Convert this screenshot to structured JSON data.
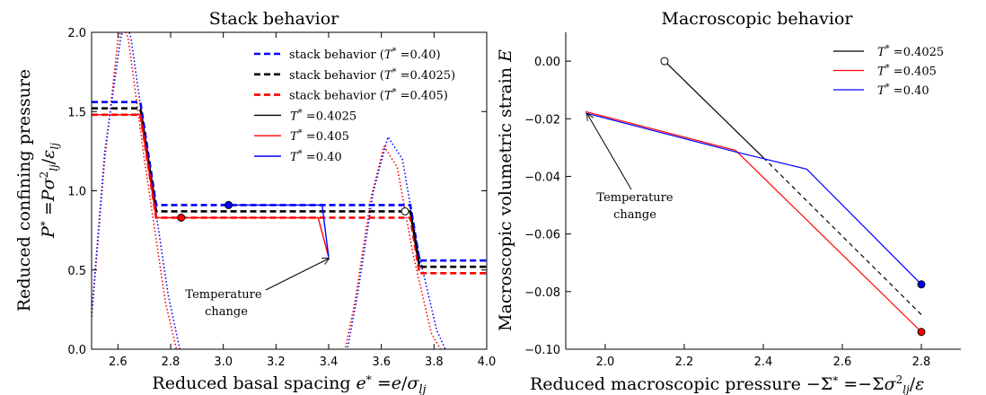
{
  "chart_data": [
    {
      "type": "line",
      "title": "Stack behavior",
      "xlabel": "Reduced basal spacing e* = e/σ_lj",
      "ylabel_line1": "Reduced confining pressure",
      "ylabel_line2": "P* = Pσ²_lj/ε_lj",
      "xlim": [
        2.5,
        4.0
      ],
      "ylim": [
        0.0,
        2.0
      ],
      "xticks": [
        "2.6",
        "2.8",
        "3.0",
        "3.2",
        "3.4",
        "3.6",
        "3.8",
        "4.0"
      ],
      "yticks": [
        "0.0",
        "0.5",
        "1.0",
        "1.5",
        "2.0"
      ],
      "legend": "top-right",
      "annotation": {
        "line1": "Temperature",
        "line2": "change"
      },
      "series": [
        {
          "name": "stack behavior (T* = 0.40)",
          "style": "dashed",
          "color": "#0000ff",
          "x": [
            2.5,
            2.685,
            2.745,
            3.375,
            3.71,
            3.745,
            4.0
          ],
          "y": [
            1.56,
            1.56,
            0.91,
            0.91,
            0.91,
            0.56,
            0.56
          ]
        },
        {
          "name": "stack behavior (T* = 0.4025)",
          "style": "dashed",
          "color": "#000000",
          "x": [
            2.5,
            2.685,
            2.745,
            3.375,
            3.71,
            3.745,
            4.0
          ],
          "y": [
            1.52,
            1.52,
            0.87,
            0.87,
            0.87,
            0.52,
            0.52
          ]
        },
        {
          "name": "stack behavior (T* = 0.405)",
          "style": "dashed",
          "color": "#ff0000",
          "x": [
            2.5,
            2.685,
            2.745,
            3.375,
            3.71,
            3.745,
            4.0
          ],
          "y": [
            1.48,
            1.48,
            0.83,
            0.83,
            0.83,
            0.48,
            0.48
          ]
        },
        {
          "name": "T* = 0.4025",
          "style": "solid",
          "color": "#000000",
          "x": [
            3.69,
            3.71,
            3.745
          ],
          "y": [
            0.87,
            0.87,
            0.52
          ]
        },
        {
          "name": "T* = 0.405",
          "style": "solid",
          "color": "#ff0000",
          "x": [
            2.5,
            2.685,
            2.745,
            3.36,
            3.4
          ],
          "y": [
            1.48,
            1.48,
            0.83,
            0.83,
            0.58
          ]
        },
        {
          "name": "T* = 0.40",
          "style": "solid",
          "color": "#0000ff",
          "x": [
            3.02,
            3.375,
            3.4
          ],
          "y": [
            0.91,
            0.91,
            0.58
          ]
        }
      ],
      "dotted_curves": [
        {
          "color": "#ff0000",
          "x": [
            2.48,
            2.55,
            2.6,
            2.62,
            2.64,
            2.7,
            2.78,
            2.85
          ],
          "y": [
            -0.2,
            1.2,
            1.95,
            2.06,
            1.95,
            1.2,
            0.3,
            -0.2
          ]
        },
        {
          "color": "#0000ff",
          "x": [
            2.48,
            2.55,
            2.61,
            2.63,
            2.65,
            2.71,
            2.79,
            2.86
          ],
          "y": [
            -0.2,
            1.25,
            1.96,
            2.08,
            1.96,
            1.25,
            0.35,
            -0.2
          ]
        },
        {
          "color": "#ff0000",
          "x": [
            3.45,
            3.5,
            3.56,
            3.61,
            3.66,
            3.72,
            3.79,
            3.86
          ],
          "y": [
            -0.1,
            0.3,
            0.95,
            1.28,
            1.15,
            0.6,
            0.1,
            -0.1
          ]
        },
        {
          "color": "#0000ff",
          "x": [
            3.46,
            3.51,
            3.57,
            3.625,
            3.68,
            3.74,
            3.81,
            3.87
          ],
          "y": [
            -0.1,
            0.35,
            1.0,
            1.34,
            1.2,
            0.62,
            0.12,
            -0.1
          ]
        }
      ],
      "markers": [
        {
          "x": 3.02,
          "y": 0.91,
          "fill": "#0000ff"
        },
        {
          "x": 2.84,
          "y": 0.83,
          "fill": "#ff0000"
        },
        {
          "x": 3.69,
          "y": 0.87,
          "fill": "#ffffff"
        }
      ]
    },
    {
      "type": "line",
      "title": "Macroscopic behavior",
      "xlabel": "Reduced macroscopic pressure −Σ* = −Σσ²_lj/ε",
      "ylabel": "Macroscopic volumetric strain E",
      "xlim": [
        1.9,
        2.9
      ],
      "ylim": [
        -0.1,
        0.01
      ],
      "xticks": [
        "2.0",
        "2.2",
        "2.4",
        "2.6",
        "2.8"
      ],
      "yticks": [
        "0.00",
        "−0.02",
        "−0.04",
        "−0.06",
        "−0.08",
        "−0.10"
      ],
      "legend": "top-right",
      "annotation": {
        "line1": "Temperature",
        "line2": "change"
      },
      "series": [
        {
          "name": "T* = 0.4025",
          "style": "solid",
          "color": "#000000",
          "x": [
            2.15,
            2.4
          ],
          "y": [
            0.0,
            -0.0335
          ]
        },
        {
          "name": "",
          "style": "dashed",
          "color": "#000000",
          "x": [
            2.4,
            2.8
          ],
          "y": [
            -0.0335,
            -0.088
          ]
        },
        {
          "name": "T* = 0.405",
          "style": "solid",
          "color": "#ff0000",
          "x": [
            1.95,
            2.33,
            2.8
          ],
          "y": [
            -0.0175,
            -0.031,
            -0.094
          ]
        },
        {
          "name": "T* = 0.40",
          "style": "solid",
          "color": "#0000ff",
          "x": [
            1.95,
            2.33,
            2.51,
            2.8
          ],
          "y": [
            -0.018,
            -0.0315,
            -0.0375,
            -0.0775
          ]
        }
      ],
      "markers": [
        {
          "x": 2.15,
          "y": 0.0,
          "fill": "#ffffff"
        },
        {
          "x": 2.8,
          "y": -0.0775,
          "fill": "#0000ff"
        },
        {
          "x": 2.8,
          "y": -0.094,
          "fill": "#ff0000"
        }
      ]
    }
  ]
}
